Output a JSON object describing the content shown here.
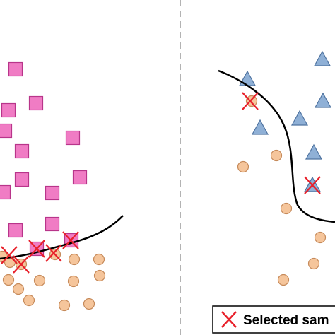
{
  "legend": {
    "label": "Selected sam"
  },
  "colors": {
    "square_fill": "#f07cc4",
    "square_stroke": "#b8358a",
    "circle_fill": "#f5c59b",
    "circle_stroke": "#c68a5a",
    "triangle_fill": "#8fb0d6",
    "triangle_stroke": "#4f73a0",
    "cross": "#e8202a",
    "boundary": "#000000",
    "divider": "#9a9a9a"
  },
  "icons": {
    "square": "pink-square-marker",
    "circle": "orange-circle-marker",
    "triangle": "blue-triangle-marker",
    "cross": "red-x-marker"
  }
}
